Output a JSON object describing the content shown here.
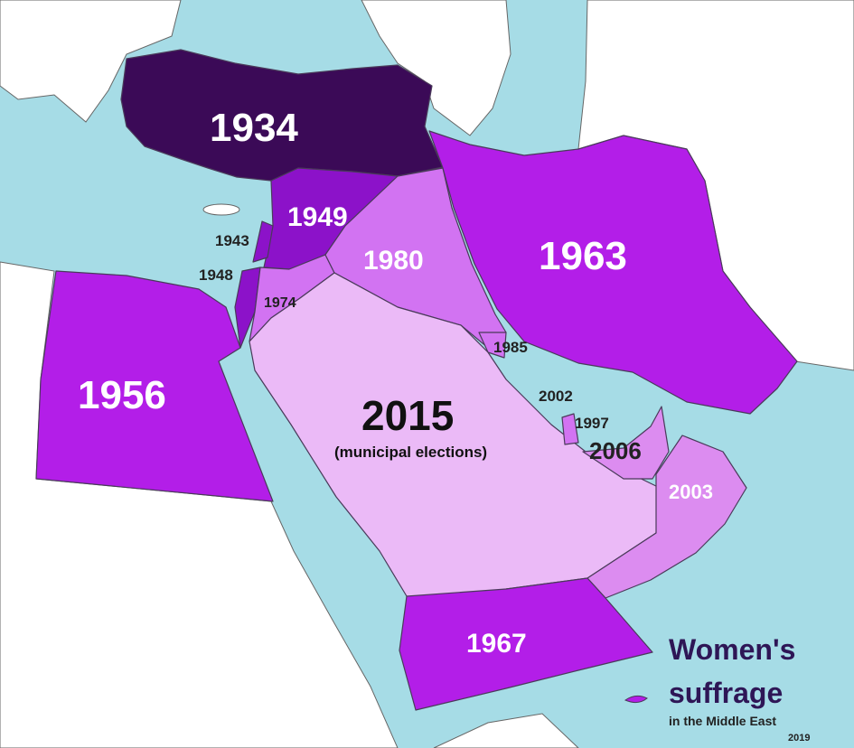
{
  "title": {
    "line1": "Women's",
    "line2": "suffrage",
    "subtitle": "in the Middle East",
    "year": "2019"
  },
  "colors": {
    "sea": "#a6dce6",
    "land": "#ffffff",
    "turkey": "#3b0a57",
    "syria": "#8c12c9",
    "bright_purple": "#b31ee8",
    "iraq": "#d273f2",
    "saudi": "#ebbaf7",
    "oman_uae": "#dc8cf0",
    "title": "#2e1656"
  },
  "regions": [
    {
      "id": "turkey",
      "label": "1934"
    },
    {
      "id": "syria",
      "label": "1949"
    },
    {
      "id": "lebanon",
      "label": "1943"
    },
    {
      "id": "israel",
      "label": "1948"
    },
    {
      "id": "jordan",
      "label": "1974"
    },
    {
      "id": "iraq",
      "label": "1980"
    },
    {
      "id": "iran",
      "label": "1963"
    },
    {
      "id": "egypt",
      "label": "1956"
    },
    {
      "id": "saudi",
      "label": "2015",
      "note": "(municipal elections)"
    },
    {
      "id": "kuwait",
      "label": "1985"
    },
    {
      "id": "bahrain",
      "label": "2002"
    },
    {
      "id": "qatar",
      "label": "1997"
    },
    {
      "id": "uae",
      "label": "2006"
    },
    {
      "id": "oman",
      "label": "2003"
    },
    {
      "id": "yemen",
      "label": "1967"
    }
  ]
}
